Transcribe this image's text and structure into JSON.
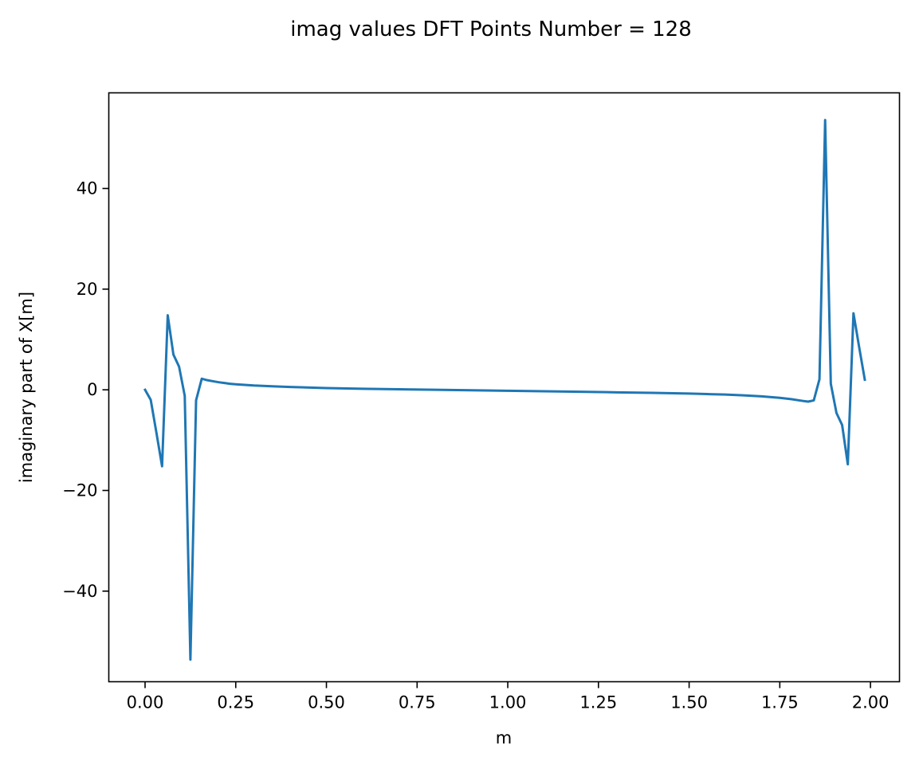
{
  "chart_data": {
    "type": "line",
    "title": "imag values DFT Points Number = 128",
    "xlabel": "m",
    "ylabel": "imaginary part of X[m]",
    "xlim": [
      -0.1,
      2.08
    ],
    "ylim": [
      -58,
      59
    ],
    "xticks": [
      0.0,
      0.25,
      0.5,
      0.75,
      1.0,
      1.25,
      1.5,
      1.75,
      2.0
    ],
    "xtick_labels": [
      "0.00",
      "0.25",
      "0.50",
      "0.75",
      "1.00",
      "1.25",
      "1.50",
      "1.75",
      "2.00"
    ],
    "yticks": [
      -40,
      -20,
      0,
      20,
      40
    ],
    "ytick_labels": [
      "−40",
      "−20",
      "0",
      "20",
      "40"
    ],
    "grid": false,
    "series": [
      {
        "color": "#1f77b4",
        "x": [
          0.0,
          0.015625,
          0.03125,
          0.046875,
          0.0625,
          0.078125,
          0.09375,
          0.109375,
          0.125,
          0.140625,
          0.15625,
          0.171875,
          0.1875,
          0.203125,
          0.21875,
          0.234375,
          0.25,
          0.3,
          0.35,
          0.4,
          0.5,
          0.6,
          0.7,
          0.8,
          0.9,
          1.0,
          1.1,
          1.2,
          1.3,
          1.4,
          1.5,
          1.55,
          1.6,
          1.65,
          1.7,
          1.75,
          1.78125,
          1.8125,
          1.828125,
          1.84375,
          1.859375,
          1.875,
          1.890625,
          1.90625,
          1.921875,
          1.9375,
          1.953125,
          1.96875,
          1.984375
        ],
        "y": [
          0.0,
          -2.0,
          -8.5,
          -15.2,
          14.8,
          7.0,
          4.6,
          -1.2,
          -53.6,
          -2.1,
          2.2,
          1.9,
          1.7,
          1.5,
          1.35,
          1.2,
          1.1,
          0.85,
          0.7,
          0.55,
          0.35,
          0.2,
          0.1,
          0.0,
          -0.1,
          -0.2,
          -0.3,
          -0.4,
          -0.5,
          -0.6,
          -0.75,
          -0.85,
          -0.95,
          -1.1,
          -1.3,
          -1.6,
          -1.85,
          -2.2,
          -2.35,
          -2.1,
          2.1,
          53.6,
          1.2,
          -4.6,
          -7.0,
          -14.8,
          15.2,
          8.5,
          2.0
        ]
      }
    ]
  }
}
